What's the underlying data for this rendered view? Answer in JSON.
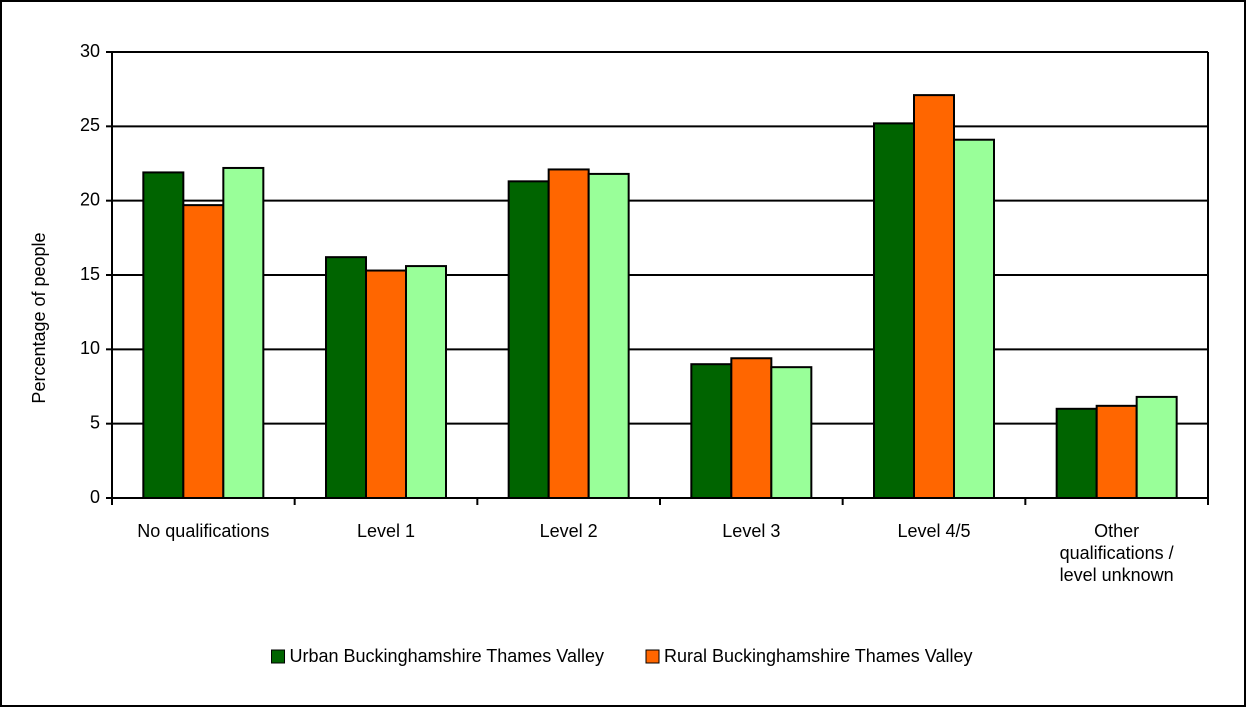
{
  "chart_data": {
    "type": "bar",
    "y_label": "Percentage of people",
    "categories": [
      "No qualifications",
      "Level 1",
      "Level 2",
      "Level 3",
      "Level 4/5",
      "Other qualifications / level unknown"
    ],
    "series": [
      {
        "name": "Urban Buckinghamshire Thames Valley",
        "color": "#006400",
        "values": [
          21.9,
          16.2,
          21.3,
          9.0,
          25.2,
          6.0
        ]
      },
      {
        "name": "Rural Buckinghamshire Thames Valley",
        "color": "#ff6600",
        "values": [
          19.7,
          15.3,
          22.1,
          9.4,
          27.1,
          6.2
        ]
      },
      {
        "color": "#99ff99",
        "values": [
          22.2,
          15.6,
          21.8,
          8.8,
          24.1,
          6.8
        ]
      }
    ],
    "ylim": [
      0,
      30
    ],
    "yticks": [
      0,
      5,
      10,
      15,
      20,
      25,
      30
    ],
    "grid": true,
    "legend": "bottom"
  }
}
